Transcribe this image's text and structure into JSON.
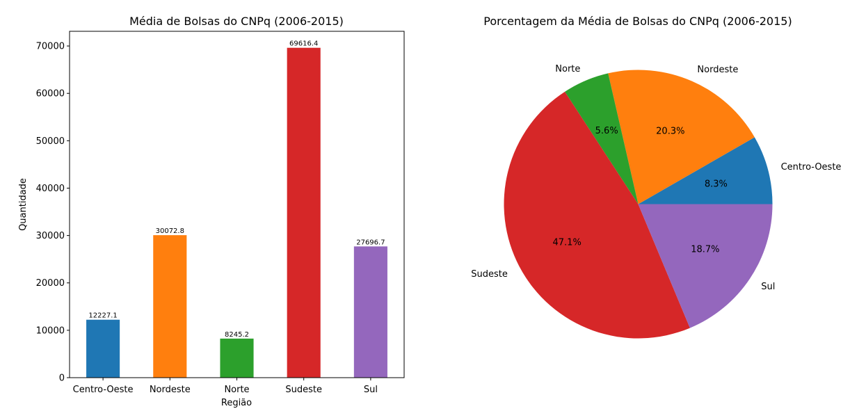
{
  "chart_data": [
    {
      "type": "bar",
      "title": "Média de Bolsas do CNPq (2006-2015)",
      "xlabel": "Região",
      "ylabel": "Quantidade",
      "categories": [
        "Centro-Oeste",
        "Nordeste",
        "Norte",
        "Sudeste",
        "Sul"
      ],
      "values": [
        12227.1,
        30072.8,
        8245.2,
        69616.4,
        27696.7
      ],
      "value_labels": [
        "12227.1",
        "30072.8",
        "8245.2",
        "69616.4",
        "27696.7"
      ],
      "colors": [
        "#1f77b4",
        "#ff7f0e",
        "#2ca02c",
        "#d62728",
        "#9467bd"
      ],
      "yticks": [
        0,
        10000,
        20000,
        30000,
        40000,
        50000,
        60000,
        70000
      ],
      "ytick_labels": [
        "0",
        "10000",
        "20000",
        "30000",
        "40000",
        "50000",
        "60000",
        "70000"
      ],
      "ylim": [
        0,
        73097
      ],
      "grid": false,
      "legend": false
    },
    {
      "type": "pie",
      "title": "Porcentagem da Média de Bolsas do CNPq (2006-2015)",
      "labels": [
        "Centro-Oeste",
        "Nordeste",
        "Norte",
        "Sudeste",
        "Sul"
      ],
      "values": [
        8.3,
        20.3,
        5.6,
        47.1,
        18.7
      ],
      "pct_labels": [
        "8.3%",
        "20.3%",
        "5.6%",
        "47.1%",
        "18.7%"
      ],
      "colors": [
        "#1f77b4",
        "#ff7f0e",
        "#2ca02c",
        "#d62728",
        "#9467bd"
      ],
      "start_angle": 0,
      "direction": "counterclockwise",
      "legend": false
    }
  ]
}
